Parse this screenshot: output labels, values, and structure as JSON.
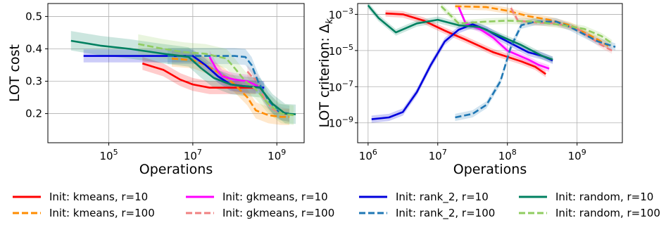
{
  "chart_data": [
    {
      "type": "line",
      "xlabel": "Operations",
      "ylabel": "LOT cost",
      "xscale": "log",
      "xlim_exp": [
        3.55,
        9.65
      ],
      "ylim": [
        0.11,
        0.54
      ],
      "xticks": [
        {
          "base": "10",
          "exp": "5",
          "v": 5
        },
        {
          "base": "10",
          "exp": "7",
          "v": 7
        },
        {
          "base": "10",
          "exp": "9",
          "v": 9
        }
      ],
      "yticks": [
        {
          "label": "0.2",
          "v": 0.2
        },
        {
          "label": "0.3",
          "v": 0.3
        },
        {
          "label": "0.4",
          "v": 0.4
        },
        {
          "label": "0.5",
          "v": 0.5
        }
      ],
      "grid": true,
      "series": [
        {
          "name": "Init: kmeans, r=10",
          "color": "#ff0000",
          "dash": false,
          "band": 0.02,
          "points": [
            [
              5.8,
              0.355
            ],
            [
              6.3,
              0.335
            ],
            [
              6.7,
              0.305
            ],
            [
              7.0,
              0.29
            ],
            [
              7.4,
              0.28
            ],
            [
              7.8,
              0.28
            ],
            [
              8.2,
              0.28
            ],
            [
              8.5,
              0.28
            ]
          ]
        },
        {
          "name": "Init: kmeans, r=100",
          "color": "#ff8c00",
          "dash": true,
          "band": 0.025,
          "points": [
            [
              6.5,
              0.37
            ],
            [
              7.0,
              0.365
            ],
            [
              7.3,
              0.35
            ],
            [
              7.7,
              0.32
            ],
            [
              8.0,
              0.29
            ],
            [
              8.3,
              0.25
            ],
            [
              8.5,
              0.21
            ],
            [
              8.8,
              0.195
            ],
            [
              9.1,
              0.19
            ],
            [
              9.3,
              0.19
            ]
          ]
        },
        {
          "name": "Init: gkmeans, r=10",
          "color": "#ff00ff",
          "dash": false,
          "band": 0.02,
          "points": [
            [
              7.4,
              0.375
            ],
            [
              7.55,
              0.34
            ],
            [
              7.7,
              0.315
            ],
            [
              8.0,
              0.305
            ],
            [
              8.3,
              0.3
            ],
            [
              8.55,
              0.285
            ]
          ]
        },
        {
          "name": "Init: gkmeans, r=100",
          "color": "#f08080",
          "dash": true,
          "band": 0.02,
          "points": [
            [
              8.3,
              0.33
            ],
            [
              8.4,
              0.315
            ],
            [
              8.55,
              0.3
            ],
            [
              8.7,
              0.245
            ],
            [
              8.9,
              0.215
            ],
            [
              9.1,
              0.2
            ],
            [
              9.3,
              0.195
            ]
          ]
        },
        {
          "name": "Init: rank_2, r=10",
          "color": "#0000dd",
          "dash": false,
          "band": 0.02,
          "points": [
            [
              4.4,
              0.378
            ],
            [
              5.5,
              0.378
            ],
            [
              6.5,
              0.378
            ],
            [
              7.0,
              0.378
            ],
            [
              7.3,
              0.35
            ],
            [
              7.6,
              0.315
            ],
            [
              7.9,
              0.29
            ],
            [
              8.2,
              0.285
            ],
            [
              8.7,
              0.28
            ]
          ]
        },
        {
          "name": "Init: rank_2, r=100",
          "color": "#1f77b4",
          "dash": true,
          "band": 0.025,
          "points": [
            [
              6.4,
              0.378
            ],
            [
              7.3,
              0.378
            ],
            [
              8.0,
              0.378
            ],
            [
              8.25,
              0.375
            ],
            [
              8.4,
              0.35
            ],
            [
              8.55,
              0.3
            ],
            [
              8.8,
              0.24
            ],
            [
              9.05,
              0.205
            ],
            [
              9.3,
              0.2
            ]
          ]
        },
        {
          "name": "Init: random, r=10",
          "color": "#008060",
          "dash": false,
          "band": 0.03,
          "points": [
            [
              4.1,
              0.425
            ],
            [
              4.8,
              0.41
            ],
            [
              5.5,
              0.4
            ],
            [
              6.3,
              0.385
            ],
            [
              6.9,
              0.375
            ],
            [
              7.2,
              0.34
            ],
            [
              7.5,
              0.31
            ],
            [
              7.9,
              0.29
            ],
            [
              8.2,
              0.285
            ],
            [
              8.6,
              0.28
            ],
            [
              8.9,
              0.23
            ],
            [
              9.2,
              0.2
            ],
            [
              9.45,
              0.198
            ]
          ]
        },
        {
          "name": "Init: random, r=100",
          "color": "#90cc60",
          "dash": true,
          "band": 0.03,
          "points": [
            [
              5.7,
              0.415
            ],
            [
              6.3,
              0.4
            ],
            [
              6.8,
              0.39
            ],
            [
              7.3,
              0.385
            ],
            [
              7.8,
              0.37
            ],
            [
              8.0,
              0.34
            ],
            [
              8.25,
              0.3
            ],
            [
              8.5,
              0.275
            ],
            [
              8.8,
              0.23
            ],
            [
              9.1,
              0.2
            ],
            [
              9.4,
              0.195
            ]
          ]
        }
      ]
    },
    {
      "type": "line",
      "xlabel": "Operations",
      "ylabel_prefix": "LOT criterion: Δ",
      "ylabel_sub": "k",
      "xscale": "log",
      "yscale": "log",
      "xlim_exp": [
        5.85,
        9.65
      ],
      "ylim_exp": [
        -10.1,
        -2.4
      ],
      "xticks": [
        {
          "base": "10",
          "exp": "6",
          "v": 6
        },
        {
          "base": "10",
          "exp": "7",
          "v": 7
        },
        {
          "base": "10",
          "exp": "8",
          "v": 8
        },
        {
          "base": "10",
          "exp": "9",
          "v": 9
        }
      ],
      "yticks": [
        {
          "base": "10",
          "exp": "−9",
          "v": -9
        },
        {
          "base": "10",
          "exp": "−7",
          "v": -7
        },
        {
          "base": "10",
          "exp": "−5",
          "v": -5
        },
        {
          "base": "10",
          "exp": "−3",
          "v": -3
        }
      ],
      "grid": true,
      "series": [
        {
          "name": "Init: kmeans, r=10",
          "color": "#ff0000",
          "dash": false,
          "band": 0.18,
          "points": [
            [
              6.25,
              -2.95
            ],
            [
              6.5,
              -3.0
            ],
            [
              6.8,
              -3.35
            ],
            [
              7.1,
              -3.9
            ],
            [
              7.4,
              -4.4
            ],
            [
              7.8,
              -5.1
            ],
            [
              8.2,
              -5.6
            ],
            [
              8.4,
              -5.9
            ],
            [
              8.55,
              -6.3
            ]
          ]
        },
        {
          "name": "Init: kmeans, r=100",
          "color": "#ff8c00",
          "dash": true,
          "band": 0.18,
          "points": [
            [
              7.25,
              -2.55
            ],
            [
              7.7,
              -2.6
            ],
            [
              8.0,
              -2.8
            ],
            [
              8.3,
              -3.1
            ],
            [
              8.6,
              -3.3
            ],
            [
              8.9,
              -3.6
            ],
            [
              9.1,
              -4.0
            ],
            [
              9.3,
              -4.4
            ],
            [
              9.45,
              -4.75
            ]
          ]
        },
        {
          "name": "Init: gkmeans, r=10",
          "color": "#ff00ff",
          "dash": false,
          "band": 0.18,
          "points": [
            [
              7.3,
              -2.6
            ],
            [
              7.4,
              -3.5
            ],
            [
              7.6,
              -3.8
            ],
            [
              7.8,
              -4.3
            ],
            [
              8.0,
              -5.0
            ],
            [
              8.3,
              -5.5
            ],
            [
              8.45,
              -5.8
            ],
            [
              8.6,
              -6.0
            ]
          ]
        },
        {
          "name": "Init: gkmeans, r=100",
          "color": "#f08080",
          "dash": true,
          "band": 0.18,
          "points": [
            [
              8.05,
              -2.65
            ],
            [
              8.15,
              -3.35
            ],
            [
              8.4,
              -3.45
            ],
            [
              8.7,
              -3.5
            ],
            [
              9.0,
              -3.8
            ],
            [
              9.2,
              -4.3
            ],
            [
              9.35,
              -4.7
            ],
            [
              9.5,
              -5.0
            ]
          ]
        },
        {
          "name": "Init: rank_2, r=10",
          "color": "#0000dd",
          "dash": false,
          "band": 0.2,
          "points": [
            [
              6.05,
              -8.8
            ],
            [
              6.3,
              -8.7
            ],
            [
              6.5,
              -8.4
            ],
            [
              6.7,
              -7.3
            ],
            [
              6.9,
              -5.8
            ],
            [
              7.1,
              -4.5
            ],
            [
              7.3,
              -3.85
            ],
            [
              7.5,
              -3.55
            ],
            [
              7.7,
              -3.85
            ],
            [
              7.9,
              -4.3
            ],
            [
              8.1,
              -4.7
            ],
            [
              8.3,
              -5.1
            ],
            [
              8.5,
              -5.3
            ],
            [
              8.65,
              -5.55
            ]
          ]
        },
        {
          "name": "Init: rank_2, r=100",
          "color": "#1f77b4",
          "dash": true,
          "band": 0.2,
          "points": [
            [
              7.25,
              -8.7
            ],
            [
              7.5,
              -8.5
            ],
            [
              7.7,
              -8.0
            ],
            [
              7.9,
              -6.7
            ],
            [
              8.05,
              -4.8
            ],
            [
              8.2,
              -3.6
            ],
            [
              8.4,
              -3.4
            ],
            [
              8.7,
              -3.4
            ],
            [
              8.9,
              -3.7
            ],
            [
              9.1,
              -4.1
            ],
            [
              9.3,
              -4.5
            ],
            [
              9.55,
              -4.8
            ]
          ]
        },
        {
          "name": "Init: random, r=10",
          "color": "#008060",
          "dash": false,
          "band": 0.18,
          "points": [
            [
              6.0,
              -2.5
            ],
            [
              6.15,
              -3.2
            ],
            [
              6.4,
              -4.0
            ],
            [
              6.7,
              -3.5
            ],
            [
              7.0,
              -3.3
            ],
            [
              7.3,
              -3.6
            ],
            [
              7.6,
              -3.7
            ],
            [
              7.9,
              -4.2
            ],
            [
              8.2,
              -4.7
            ],
            [
              8.5,
              -5.3
            ],
            [
              8.65,
              -5.5
            ]
          ]
        },
        {
          "name": "Init: random, r=100",
          "color": "#90cc60",
          "dash": true,
          "band": 0.18,
          "points": [
            [
              7.05,
              -2.55
            ],
            [
              7.3,
              -3.5
            ],
            [
              7.7,
              -3.4
            ],
            [
              8.0,
              -3.35
            ],
            [
              8.4,
              -3.4
            ],
            [
              8.8,
              -3.6
            ],
            [
              9.1,
              -3.8
            ],
            [
              9.35,
              -4.2
            ],
            [
              9.5,
              -4.6
            ]
          ]
        }
      ]
    }
  ],
  "legend": [
    {
      "label": "Init: kmeans, r=10",
      "color": "#ff0000",
      "dash": false
    },
    {
      "label": "Init: gkmeans, r=10",
      "color": "#ff00ff",
      "dash": false
    },
    {
      "label": "Init: rank_2, r=10",
      "color": "#0000dd",
      "dash": false
    },
    {
      "label": "Init: random, r=10",
      "color": "#008060",
      "dash": false
    },
    {
      "label": "Init: kmeans, r=100",
      "color": "#ff8c00",
      "dash": true
    },
    {
      "label": "Init: gkmeans, r=100",
      "color": "#f08080",
      "dash": true
    },
    {
      "label": "Init: rank_2, r=100",
      "color": "#1f77b4",
      "dash": true
    },
    {
      "label": "Init: random, r=100",
      "color": "#90cc60",
      "dash": true
    }
  ]
}
